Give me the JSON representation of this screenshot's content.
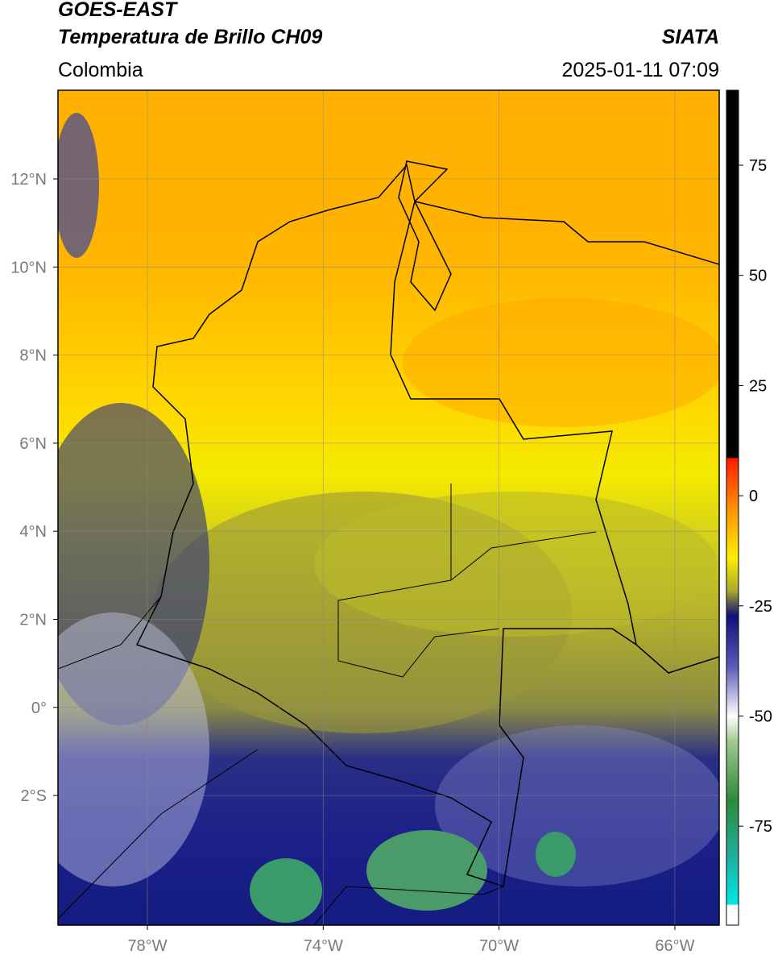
{
  "header": {
    "title": "GOES-EAST",
    "subtitle": "Temperatura de Brillo CH09",
    "source": "SIATA",
    "region": "Colombia",
    "datetime": "2025-01-11 07:09"
  },
  "map": {
    "lon_ticks": [
      "78°W",
      "74°W",
      "70°W",
      "66°W"
    ],
    "lat_ticks": [
      "12°N",
      "10°N",
      "8°N",
      "6°N",
      "4°N",
      "2°N",
      "0°",
      "2°S"
    ]
  },
  "colorbar": {
    "ticks": [
      75,
      50,
      25,
      0,
      -25,
      -50,
      -75
    ]
  }
}
